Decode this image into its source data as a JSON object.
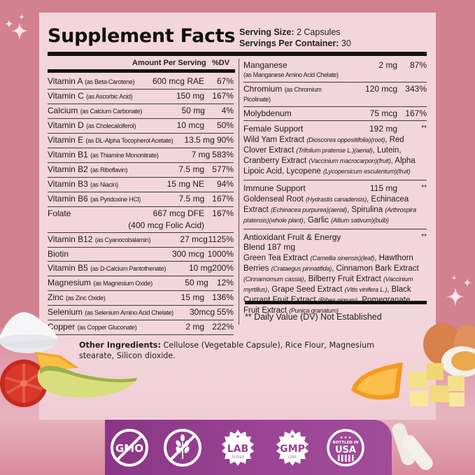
{
  "header": {
    "title": "Supplement Facts",
    "serving_size_label": "Serving Size:",
    "serving_size_value": "2 Capsules",
    "servings_per_container_label": "Servings Per Container:",
    "servings_per_container_value": "30"
  },
  "columns": {
    "amount": "Amount Per Serving",
    "dv": "%DV"
  },
  "left_rows": [
    {
      "name": "Vitamin A",
      "source": "(as Beta-Carotene)",
      "amount": "600 mcg RAE",
      "dv": "67%"
    },
    {
      "name": "Vitamin C",
      "source": "(as Ascorbic Acid)",
      "amount": "150 mg",
      "dv": "167%"
    },
    {
      "name": "Calcium",
      "source": "(as Calcium Carbonate)",
      "amount": "50 mg",
      "dv": "4%"
    },
    {
      "name": "Vitamin D",
      "source": "(as Cholecalciferol)",
      "amount": "10 mcg",
      "dv": "50%"
    },
    {
      "name": "Vitamin E",
      "source": "(as DL-Alpha Tocopherol Acetate)",
      "amount": "13.5 mg",
      "dv": "90%"
    },
    {
      "name": "Vitamin B1",
      "source": "(as Thiamine Mononitrate)",
      "amount": "7 mg",
      "dv": "583%"
    },
    {
      "name": "Vitamin B2",
      "source": "(as Riboflavin)",
      "amount": "7.5 mg",
      "dv": "577%"
    },
    {
      "name": "Vitamin B3",
      "source": "(as Niacin)",
      "amount": "15 mg NE",
      "dv": "94%"
    },
    {
      "name": "Vitamin B6",
      "source": "(as Pyridoxine HCl)",
      "amount": "7.5 mg",
      "dv": "167%"
    },
    {
      "name": "Folate",
      "source": "",
      "amount": "667 mcg DFE",
      "amount_sub": "(400 mcg Folic Acid)",
      "dv": "167%"
    },
    {
      "name": "Vitamin B12",
      "source": "(as Cyanocobalamin)",
      "amount": "27 mcg",
      "dv": "1125%"
    },
    {
      "name": "Biotin",
      "source": "",
      "amount": "300 mcg",
      "dv": "1000%"
    },
    {
      "name": "Vitamin B5",
      "source": "(as D-Calcium Pantothenate)",
      "amount": "10 mg",
      "dv": "200%"
    },
    {
      "name": "Magnesium",
      "source": "(as Magnesium Oxide)",
      "amount": "50 mg",
      "dv": "12%"
    },
    {
      "name": "Zinc",
      "source": "(as Zinc Oxide)",
      "amount": "15 mg",
      "dv": "136%"
    },
    {
      "name": "Selenium",
      "source": "(as Selenium Amino Acid Chelate)",
      "amount": "30mcg",
      "dv": "55%"
    },
    {
      "name": "Copper",
      "source": "(as Copper Gluconate)",
      "amount": "2 mg",
      "dv": "222%"
    }
  ],
  "right_rows": [
    {
      "name": "Manganese",
      "source": "(as Manganese Amino Acid Chelate)",
      "amount": "2 mg",
      "dv": "87%"
    },
    {
      "name": "Chromium",
      "source": "(as Chromium Picolinate)",
      "amount": "120 mcg",
      "dv": "343%"
    },
    {
      "name": "Molybdenum",
      "source": "",
      "amount": "75 mcg",
      "dv": "167%"
    }
  ],
  "blends": [
    {
      "name": "Female Support",
      "amount": "192 mg",
      "dv": "**",
      "ingredients": [
        {
          "text": "Wild Yam Extract ",
          "latin": "(Dioscorea oppositifolia)(root)",
          "sep": ", Red "
        },
        {
          "text": "Clover Extract ",
          "latin": "(Trifolium pratense L.)(aerial)",
          "sep": ", Lutein, "
        },
        {
          "text": "Cranberry Extract ",
          "latin": "(Vaccinium macrocarpon)(fruit)",
          "sep": ", Alpha Lipoic Acid, "
        },
        {
          "text": "Lycopene ",
          "latin": "(Lycopersicum esculentum)(fruit)",
          "sep": ""
        }
      ]
    },
    {
      "name": "Immune Support",
      "amount": "115 mg",
      "dv": "**",
      "ingredients": [
        {
          "text": "Goldenseal Root ",
          "latin": "(Hydrastis canadensis)",
          "sep": ", Echinacea "
        },
        {
          "text": "Extract ",
          "latin": "(Echinacea purpurea)(aerial)",
          "sep": ", "
        },
        {
          "text": "Spirulina ",
          "latin": "(Arthrospira platensis)(whole plant)",
          "sep": ", "
        },
        {
          "text": "Garlic ",
          "latin": "(Allium sativum)(bulb)",
          "sep": ""
        }
      ]
    },
    {
      "name": "Antioxidant Fruit & Energy Blend 187 mg",
      "amount": "",
      "dv": "**",
      "ingredients": [
        {
          "text": "Green Tea Extract ",
          "latin": "(Camellia sinensis)(leaf)",
          "sep": ", Hawthorn "
        },
        {
          "text": "Berries ",
          "latin": "(Crataegus pinnatifida)",
          "sep": ", Cinnamon Bark Extract "
        },
        {
          "text": "",
          "latin": "(Cinnamomum cassia)",
          "sep": ", Bilberry Fruit Extract "
        },
        {
          "text": "",
          "latin": "(Vaccinium myrtillus)",
          "sep": ", Grape Seed Extract "
        },
        {
          "text": "",
          "latin": "(Vitis vinifera L.)",
          "sep": ", Black Currant Fruit Extract "
        },
        {
          "text": "",
          "latin": "(Ribes nigrum)",
          "sep": ", Pomegranate Fruit Extract "
        },
        {
          "text": "",
          "latin": "(Punica granatum)",
          "sep": ""
        }
      ]
    }
  ],
  "dv_note": "** Daily Value (DV) Not Established",
  "other_ingredients": {
    "label": "Other Ingredients:",
    "text": " Cellulose (Vegetable Capsule), Rice Flour, Magnesium stearate, Silicon dioxide."
  },
  "badges": [
    {
      "id": "gmo",
      "label": "GMO",
      "icon": "no-gmo-icon"
    },
    {
      "id": "gluten",
      "label": "",
      "icon": "gluten-free-icon"
    },
    {
      "id": "lab",
      "label": "LAB",
      "sub": "TESTED",
      "icon": "lab-tested-icon"
    },
    {
      "id": "gmp",
      "label": "GMP",
      "sub": "CERT",
      "icon": "gmp-certified-icon"
    },
    {
      "id": "usa",
      "label": "USA",
      "sub": "BOTTLED IN",
      "icon": "bottled-in-usa-icon"
    }
  ],
  "colors": {
    "background": "#d2818f",
    "panel": "#f3d6dc",
    "badge_strip": "#963f90",
    "text": "#1a1a1a"
  }
}
